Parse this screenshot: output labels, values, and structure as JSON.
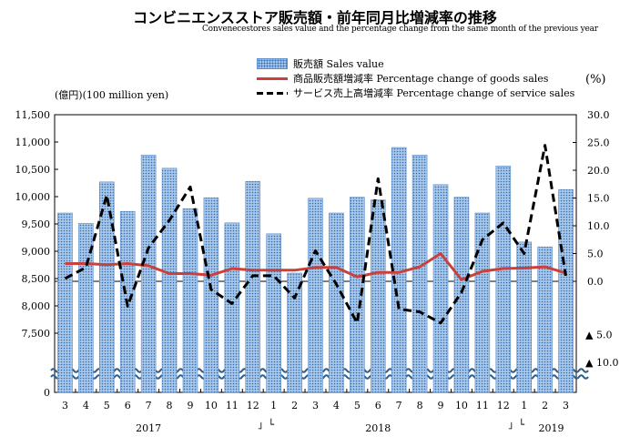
{
  "title": "コンビニエンスストア販売額・前年同月比増減率の推移",
  "subtitle": "Convenecestores sales value and the percentage change from the same month of the previous year",
  "left_axis_unit": "(億円)(100 million yen)",
  "right_axis_unit": "(%)",
  "legend": {
    "sales": "販売額 Sales value",
    "goods": "商品販売額増減率 Percentage change of goods sales",
    "service": "サービス売上高増減率 Percentage change of service sales"
  },
  "colors": {
    "bar": "#a9c7e8",
    "bar_dot": "#2f6db5",
    "goods_line": "#c9403c",
    "service_line": "#000000"
  },
  "chart_data": {
    "type": "bar",
    "categories": [
      "3",
      "4",
      "5",
      "6",
      "7",
      "8",
      "9",
      "10",
      "11",
      "12",
      "1",
      "2",
      "3",
      "4",
      "5",
      "6",
      "7",
      "8",
      "9",
      "10",
      "11",
      "12",
      "1",
      "2",
      "3"
    ],
    "year_labels": [
      "2017",
      "2018",
      "2019"
    ],
    "break_marks": [
      "」└",
      "」└"
    ],
    "left_axis": {
      "ylim": [
        7000,
        11500
      ],
      "ticks": [
        "7,500",
        "8,000",
        "8,500",
        "9,000",
        "9,500",
        "10,000",
        "10,500",
        "11,000",
        "11,500"
      ],
      "origin_label": "0",
      "axis_break": true
    },
    "right_axis": {
      "ylim": [
        -20,
        30
      ],
      "ticks": [
        "0.0",
        "5.0",
        "10.0",
        "15.0",
        "20.0",
        "25.0",
        "30.0"
      ],
      "negative_ticks": [
        "▲ 5.0",
        "▲ 10.0"
      ]
    },
    "series": [
      {
        "name": "販売額 Sales value",
        "type": "bar",
        "axis": "left",
        "values": [
          9700,
          9510,
          10270,
          9730,
          10760,
          10520,
          9780,
          9980,
          9520,
          10280,
          9320,
          8600,
          9970,
          9700,
          9990,
          9940,
          10900,
          10760,
          10220,
          9990,
          9700,
          10560,
          9170,
          9080,
          10130
        ]
      },
      {
        "name": "商品販売額増減率 Percentage change of goods sales",
        "type": "line",
        "axis": "right",
        "values": [
          3.2,
          3.2,
          3.0,
          3.2,
          2.8,
          1.4,
          1.4,
          1.1,
          2.3,
          2.0,
          2.0,
          2.0,
          2.5,
          2.5,
          0.8,
          1.6,
          1.6,
          2.6,
          5.0,
          0.3,
          1.8,
          2.3,
          2.4,
          2.6,
          1.5
        ]
      },
      {
        "name": "サービス売上高増減率 Percentage change of service sales",
        "type": "line",
        "axis": "right",
        "values": [
          0.5,
          2.5,
          15.5,
          -4.5,
          6.0,
          11.0,
          17.0,
          -1.5,
          -4.0,
          1.0,
          1.0,
          -3.0,
          5.5,
          -0.5,
          -7.5,
          18.5,
          -5.0,
          -5.5,
          -7.5,
          -2.0,
          7.5,
          10.5,
          5.0,
          24.5,
          1.0
        ]
      }
    ]
  }
}
